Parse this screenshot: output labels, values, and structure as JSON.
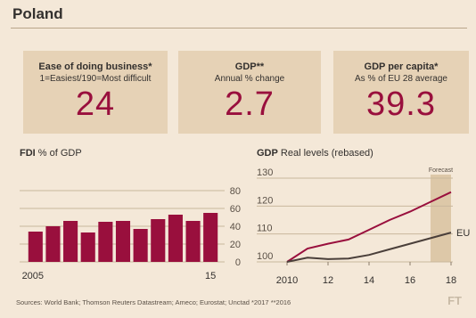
{
  "header": {
    "title": "Poland"
  },
  "kpis": [
    {
      "title": "Ease of doing business*",
      "subtitle": "1=Easiest/190=Most difficult",
      "value": "24"
    },
    {
      "title": "GDP**",
      "subtitle": "Annual % change",
      "value": "2.7"
    },
    {
      "title": "GDP per capita*",
      "subtitle": "As % of EU 28 average",
      "value": "39.3"
    }
  ],
  "fdi": {
    "title_bold": "FDI",
    "title_rest": " % of GDP"
  },
  "gdp": {
    "title_bold": "GDP",
    "title_rest": " Real levels (rebased)",
    "forecast_label": "Forecast",
    "eu_label": "EU"
  },
  "footer": {
    "source": "Sources: World Bank; Thomson Reuters Datastream; Ameco; Eurostat; Unctad   *2017  **2016",
    "logo": "FT"
  },
  "colors": {
    "accent": "#990f3d",
    "kpi_bg": "#e6d2b6",
    "bg": "#f4e8d8",
    "forecast": "#ddc8a8"
  },
  "chart_data": [
    {
      "type": "bar",
      "title": "FDI % of GDP",
      "categories": [
        "2005",
        "2006",
        "2007",
        "2008",
        "2009",
        "2010",
        "2011",
        "2012",
        "2013",
        "2014",
        "2015"
      ],
      "x_tick_labels": [
        "2005",
        "15"
      ],
      "values": [
        34,
        40,
        46,
        33,
        45,
        46,
        37,
        48,
        53,
        46,
        55
      ],
      "ylim": [
        0,
        80
      ],
      "yticks": [
        0,
        20,
        40,
        60,
        80
      ],
      "grid": true
    },
    {
      "type": "line",
      "title": "GDP Real levels (rebased)",
      "ylim": [
        100,
        130
      ],
      "yticks": [
        100,
        110,
        120,
        130
      ],
      "xlim": [
        2010,
        2018
      ],
      "xticks": [
        2010,
        2012,
        2014,
        2016,
        2018
      ],
      "x_tick_labels": [
        "2010",
        "12",
        "14",
        "16",
        "18"
      ],
      "forecast_from": 2017,
      "series": [
        {
          "name": "",
          "color": "#990f3d",
          "x": [
            2010,
            2011,
            2012,
            2013,
            2014,
            2015,
            2016,
            2017,
            2018
          ],
          "values": [
            100,
            104.8,
            106.5,
            108,
            111.5,
            115,
            118,
            121.5,
            125
          ]
        },
        {
          "name": "EU",
          "color": "#4a3f3a",
          "x": [
            2010,
            2011,
            2012,
            2013,
            2014,
            2015,
            2016,
            2017,
            2018
          ],
          "values": [
            100,
            101.5,
            101,
            101.2,
            102.5,
            104.5,
            106.5,
            108.5,
            110.5
          ]
        }
      ],
      "grid": true
    }
  ]
}
